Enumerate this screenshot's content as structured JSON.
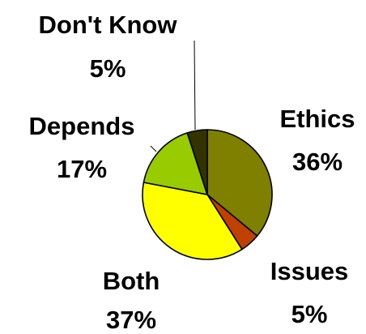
{
  "chart_data": {
    "type": "pie",
    "categories": [
      "Ethics",
      "Issues",
      "Both",
      "Depends",
      "Don't Know"
    ],
    "values": [
      36,
      5,
      37,
      17,
      5
    ],
    "value_labels": [
      "36%",
      "5%",
      "37%",
      "17%",
      "5%"
    ],
    "colors": [
      "#808000",
      "#C04000",
      "#FFFF00",
      "#99CC00",
      "#333300"
    ],
    "start_angle_deg": 0,
    "direction": "clockwise",
    "legend": "none",
    "grid": false
  }
}
